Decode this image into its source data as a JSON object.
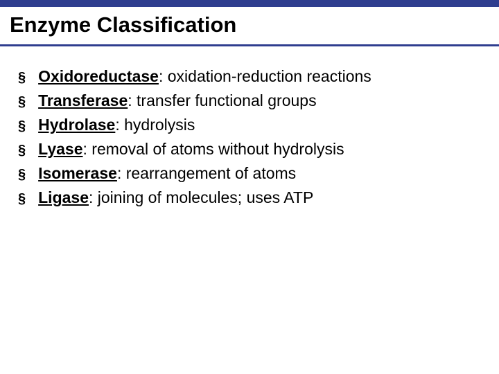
{
  "slide": {
    "title": "Enzyme Classification",
    "title_fontsize": 31,
    "title_color": "#000000",
    "top_bar_color": "#2f3e8f",
    "top_bar_height": 10,
    "divider_color": "#2f3e8f",
    "divider_height": 3,
    "background_color": "#ffffff",
    "bullet_marker": "§",
    "bullet_fontsize": 23,
    "bullet_marker_fontsize": 20,
    "items": [
      {
        "term": "Oxidoreductase",
        "description": ": oxidation-reduction reactions"
      },
      {
        "term": "Transferase",
        "description": ": transfer functional groups"
      },
      {
        "term": "Hydrolase",
        "description": ": hydrolysis"
      },
      {
        "term": "Lyase",
        "description": ": removal of atoms without hydrolysis"
      },
      {
        "term": "Isomerase",
        "description": ": rearrangement of atoms"
      },
      {
        "term": "Ligase",
        "description": ": joining of molecules; uses ATP"
      }
    ]
  }
}
